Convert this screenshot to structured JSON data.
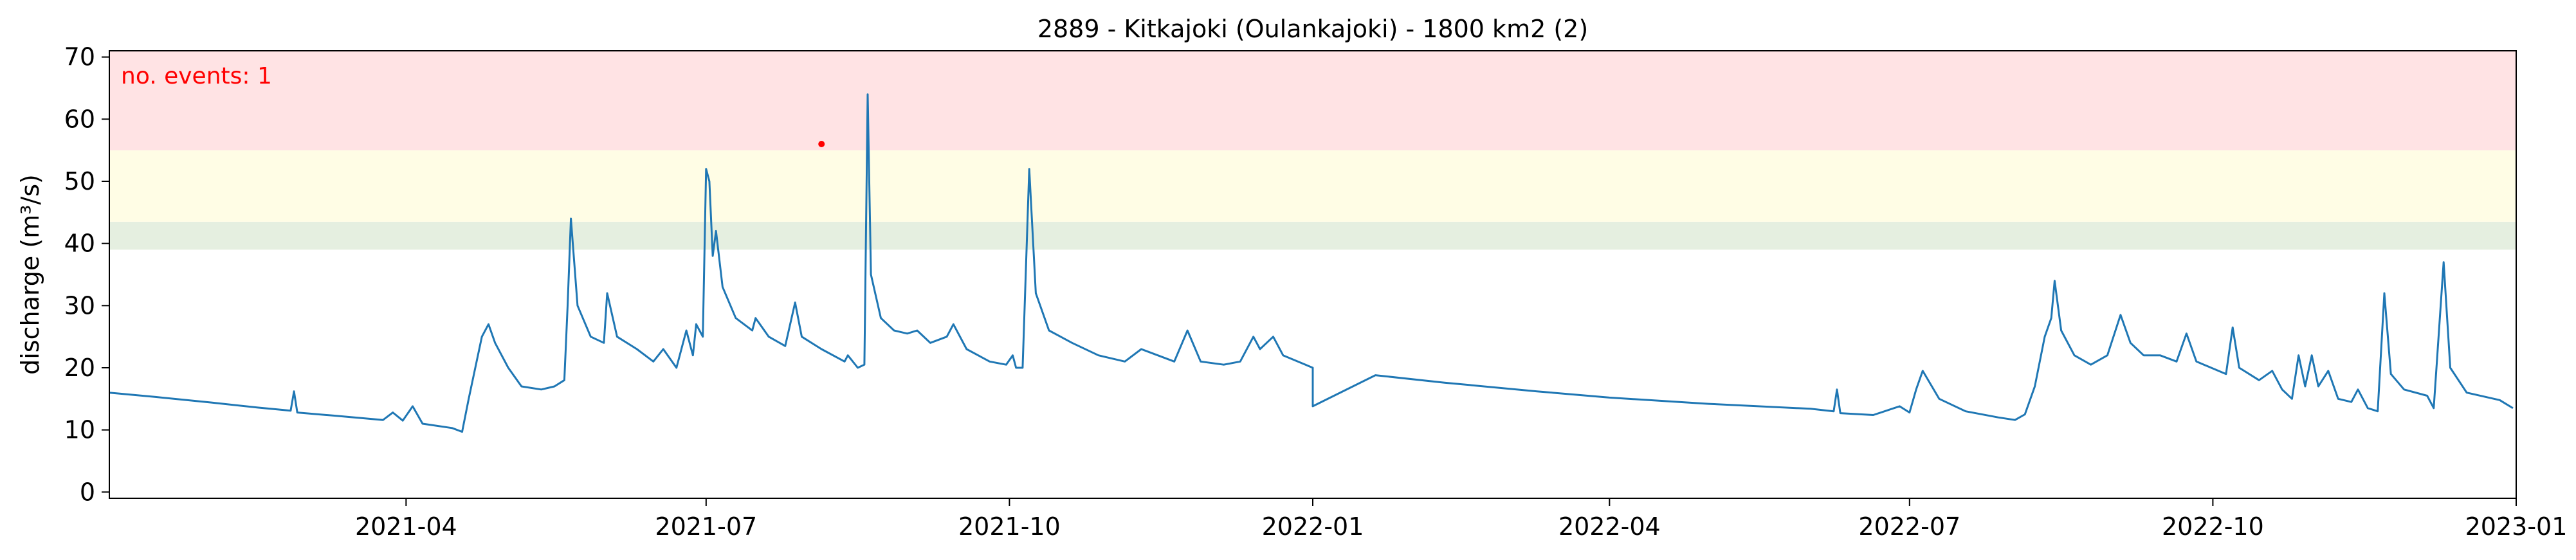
{
  "chart_data": {
    "type": "line",
    "title": "2889 - Kitkajoki (Oulankajoki) - 1800 km2 (2)",
    "xlabel": "",
    "ylabel": "discharge (m³/s)",
    "xlim": [
      "2021-01-01",
      "2023-01-01"
    ],
    "ylim": [
      -1,
      71
    ],
    "x_ticks": [
      "2021-04-01",
      "2021-07-01",
      "2021-10-01",
      "2022-01-01",
      "2022-04-01",
      "2022-07-01",
      "2022-10-01",
      "2023-01-01"
    ],
    "x_tick_labels": [
      "2021-04",
      "2021-07",
      "2021-10",
      "2022-01",
      "2022-04",
      "2022-07",
      "2022-10",
      "2023-01"
    ],
    "y_ticks": [
      0,
      10,
      20,
      30,
      40,
      50,
      60,
      70
    ],
    "y_tick_labels": [
      "0",
      "10",
      "20",
      "30",
      "40",
      "50",
      "60",
      "70"
    ],
    "grid": false,
    "threshold_bands": [
      {
        "from": 39,
        "to": 43.5,
        "color": "#e5efe0"
      },
      {
        "from": 43.5,
        "to": 55,
        "color": "#fffde5"
      },
      {
        "from": 55,
        "to": 71,
        "color": "#ffe3e4"
      }
    ],
    "annotation": {
      "text": "no. events: 1",
      "color": "#ff0000"
    },
    "event_marker": {
      "x": "2021-08-05",
      "y": 56,
      "color": "#ff0000"
    },
    "series": [
      {
        "color": "#1f77b4",
        "points": [
          [
            "2021-01-01",
            16
          ],
          [
            "2021-01-15",
            15.3
          ],
          [
            "2021-02-01",
            14.4
          ],
          [
            "2021-02-15",
            13.6
          ],
          [
            "2021-02-25",
            13.1
          ],
          [
            "2021-02-26",
            16.2
          ],
          [
            "2021-02-27",
            12.8
          ],
          [
            "2021-03-10",
            12.3
          ],
          [
            "2021-03-25",
            11.6
          ],
          [
            "2021-03-28",
            12.8
          ],
          [
            "2021-03-31",
            11.5
          ],
          [
            "2021-04-03",
            13.8
          ],
          [
            "2021-04-06",
            11
          ],
          [
            "2021-04-15",
            10.3
          ],
          [
            "2021-04-18",
            9.7
          ],
          [
            "2021-04-20",
            15
          ],
          [
            "2021-04-24",
            25
          ],
          [
            "2021-04-26",
            27
          ],
          [
            "2021-04-28",
            24
          ],
          [
            "2021-05-02",
            20
          ],
          [
            "2021-05-06",
            17
          ],
          [
            "2021-05-12",
            16.5
          ],
          [
            "2021-05-16",
            17
          ],
          [
            "2021-05-19",
            18
          ],
          [
            "2021-05-20",
            30
          ],
          [
            "2021-05-21",
            44
          ],
          [
            "2021-05-23",
            30
          ],
          [
            "2021-05-27",
            25
          ],
          [
            "2021-05-31",
            24
          ],
          [
            "2021-06-01",
            32
          ],
          [
            "2021-06-04",
            25
          ],
          [
            "2021-06-10",
            23
          ],
          [
            "2021-06-15",
            21
          ],
          [
            "2021-06-18",
            23
          ],
          [
            "2021-06-22",
            20
          ],
          [
            "2021-06-25",
            26
          ],
          [
            "2021-06-27",
            22
          ],
          [
            "2021-06-28",
            27
          ],
          [
            "2021-06-30",
            25
          ],
          [
            "2021-07-01",
            52
          ],
          [
            "2021-07-02",
            50
          ],
          [
            "2021-07-03",
            38
          ],
          [
            "2021-07-04",
            42
          ],
          [
            "2021-07-06",
            33
          ],
          [
            "2021-07-10",
            28
          ],
          [
            "2021-07-15",
            26
          ],
          [
            "2021-07-16",
            28
          ],
          [
            "2021-07-20",
            25
          ],
          [
            "2021-07-25",
            23.5
          ],
          [
            "2021-07-28",
            30.5
          ],
          [
            "2021-07-30",
            25
          ],
          [
            "2021-08-05",
            23
          ],
          [
            "2021-08-12",
            21
          ],
          [
            "2021-08-13",
            22
          ],
          [
            "2021-08-16",
            20
          ],
          [
            "2021-08-18",
            20.5
          ],
          [
            "2021-08-19",
            64
          ],
          [
            "2021-08-20",
            35
          ],
          [
            "2021-08-23",
            28
          ],
          [
            "2021-08-27",
            26
          ],
          [
            "2021-08-31",
            25.5
          ],
          [
            "2021-09-03",
            26
          ],
          [
            "2021-09-07",
            24
          ],
          [
            "2021-09-12",
            25
          ],
          [
            "2021-09-14",
            27
          ],
          [
            "2021-09-18",
            23
          ],
          [
            "2021-09-25",
            21
          ],
          [
            "2021-09-30",
            20.5
          ],
          [
            "2021-10-02",
            22
          ],
          [
            "2021-10-03",
            20
          ],
          [
            "2021-10-05",
            20
          ],
          [
            "2021-10-07",
            52
          ],
          [
            "2021-10-09",
            32
          ],
          [
            "2021-10-13",
            26
          ],
          [
            "2021-10-20",
            24
          ],
          [
            "2021-10-28",
            22
          ],
          [
            "2021-11-05",
            21
          ],
          [
            "2021-11-10",
            23
          ],
          [
            "2021-11-15",
            22
          ],
          [
            "2021-11-20",
            21
          ],
          [
            "2021-11-24",
            26
          ],
          [
            "2021-11-28",
            21
          ],
          [
            "2021-12-05",
            20.5
          ],
          [
            "2021-12-10",
            21
          ],
          [
            "2021-12-14",
            25
          ],
          [
            "2021-12-16",
            23
          ],
          [
            "2021-12-20",
            25
          ],
          [
            "2021-12-23",
            22
          ],
          [
            "2022-01-01",
            20
          ],
          [
            "2022-01-20",
            18.8
          ],
          [
            "2022-02-10",
            17.6
          ],
          [
            "2022-03-10",
            16.2
          ],
          [
            "2022-04-01",
            15.2
          ],
          [
            "2022-05-01",
            14.2
          ],
          [
            "2022-06-01",
            13.4
          ],
          [
            "2022-06-08",
            13
          ],
          [
            "2022-06-09",
            16.5
          ],
          [
            "2022-06-10",
            12.7
          ],
          [
            "2022-06-20",
            12.4
          ],
          [
            "2022-06-28",
            13.8
          ],
          [
            "2022-07-01",
            12.8
          ],
          [
            "2022-07-03",
            16.5
          ],
          [
            "2022-07-05",
            19.5
          ],
          [
            "2022-07-10",
            15
          ],
          [
            "2022-07-18",
            13
          ],
          [
            "2022-07-28",
            12
          ],
          [
            "2022-08-02",
            11.6
          ],
          [
            "2022-08-05",
            12.5
          ],
          [
            "2022-08-08",
            17
          ],
          [
            "2022-08-11",
            25
          ],
          [
            "2022-08-13",
            28
          ],
          [
            "2022-08-14",
            34
          ],
          [
            "2022-08-16",
            26
          ],
          [
            "2022-08-20",
            22
          ],
          [
            "2022-08-25",
            20.5
          ],
          [
            "2022-08-30",
            22
          ],
          [
            "2022-09-03",
            28.5
          ],
          [
            "2022-09-06",
            24
          ],
          [
            "2022-09-10",
            22
          ],
          [
            "2022-09-15",
            22
          ],
          [
            "2022-09-20",
            21
          ],
          [
            "2022-09-23",
            25.5
          ],
          [
            "2022-09-26",
            21
          ],
          [
            "2022-10-05",
            19
          ],
          [
            "2022-10-07",
            26.5
          ],
          [
            "2022-10-09",
            20
          ],
          [
            "2022-10-15",
            18
          ],
          [
            "2022-10-19",
            19.5
          ],
          [
            "2022-10-22",
            16.5
          ],
          [
            "2022-10-25",
            15
          ],
          [
            "2022-10-27",
            22
          ],
          [
            "2022-10-29",
            17
          ],
          [
            "2022-10-31",
            22
          ],
          [
            "2022-11-02",
            17
          ],
          [
            "2022-11-05",
            19.5
          ],
          [
            "2022-11-08",
            15
          ],
          [
            "2022-11-12",
            14.5
          ],
          [
            "2022-11-14",
            16.5
          ],
          [
            "2022-11-17",
            13.5
          ],
          [
            "2022-11-20",
            13
          ],
          [
            "2022-11-22",
            32
          ],
          [
            "2022-11-24",
            19
          ],
          [
            "2022-11-28",
            16.5
          ],
          [
            "2022-12-05",
            15.5
          ],
          [
            "2022-12-07",
            13.5
          ],
          [
            "2022-12-10",
            37
          ],
          [
            "2022-12-12",
            20
          ],
          [
            "2022-12-17",
            16
          ],
          [
            "2022-12-27",
            14.8
          ],
          [
            "2022-12-31",
            13.5
          ],
          [
            "2022-01-01",
            13.8
          ]
        ]
      }
    ]
  }
}
